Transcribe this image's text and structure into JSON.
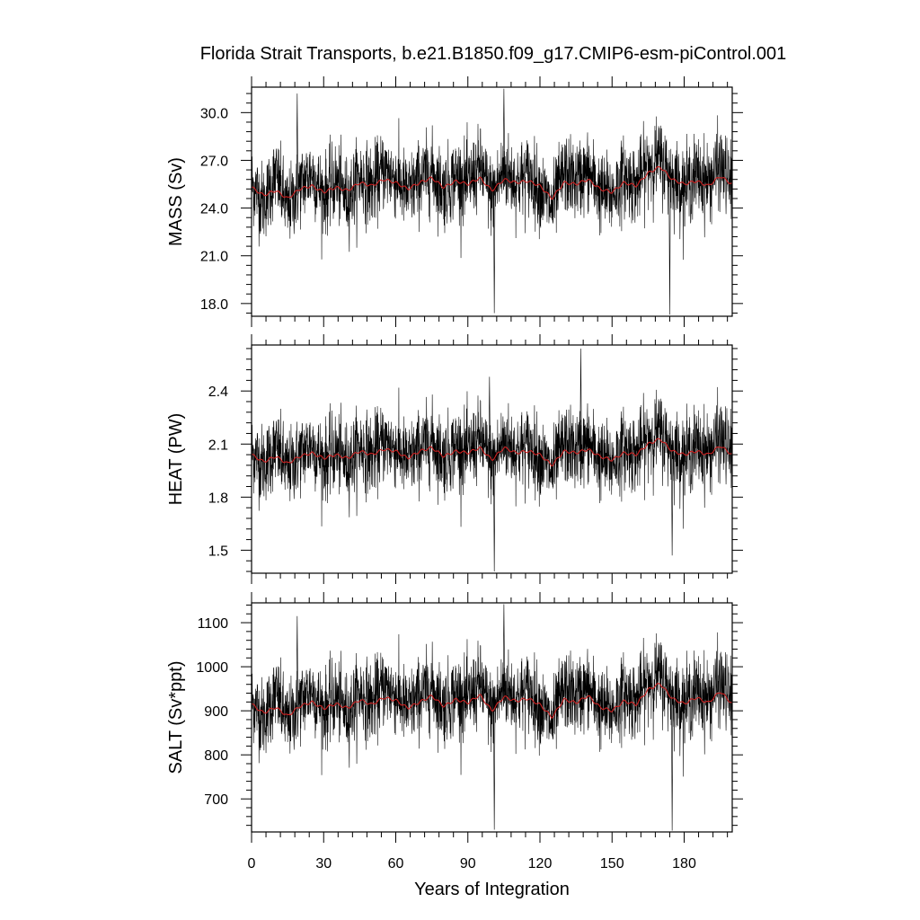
{
  "title": "Florida Strait Transports, b.e21.B1850.f09_g17.CMIP6-esm-piControl.001",
  "chart_data": [
    {
      "type": "line",
      "ylabel": "MASS (Sv)",
      "xlabel": "",
      "xlim": [
        0,
        200
      ],
      "ylim": [
        17.2,
        31.6
      ],
      "yticks": [
        18.0,
        21.0,
        24.0,
        27.0,
        30.0
      ],
      "ytick_labels": [
        "18.0",
        "21.0",
        "24.0",
        "27.0",
        "30.0"
      ],
      "x": [
        0,
        5,
        10,
        15,
        20,
        25,
        30,
        35,
        40,
        45,
        50,
        55,
        60,
        65,
        70,
        75,
        80,
        85,
        90,
        95,
        100,
        105,
        110,
        115,
        120,
        125,
        130,
        135,
        140,
        145,
        150,
        155,
        160,
        165,
        170,
        175,
        180,
        185,
        190,
        195,
        200
      ],
      "series": [
        {
          "role": "monthly",
          "color": "#000000",
          "values": [
            25.6,
            24.3,
            26.1,
            23.9,
            25.4,
            26.2,
            24.8,
            25.7,
            24.6,
            26.0,
            25.3,
            26.4,
            25.9,
            24.9,
            25.8,
            26.3,
            25.1,
            26.0,
            25.5,
            26.6,
            24.7,
            26.4,
            25.6,
            26.1,
            25.2,
            24.0,
            26.2,
            25.7,
            26.3,
            25.0,
            24.8,
            26.0,
            25.4,
            26.8,
            27.1,
            25.9,
            25.3,
            26.1,
            25.6,
            26.7,
            25.4
          ],
          "extremes": [
            {
              "x": 101,
              "y": 17.4
            },
            {
              "x": 174,
              "y": 17.3
            },
            {
              "x": 105,
              "y": 31.5
            },
            {
              "x": 19,
              "y": 31.2
            }
          ]
        },
        {
          "role": "smoothed",
          "color": "#cc2020",
          "values": [
            25.3,
            24.8,
            25.1,
            24.6,
            25.2,
            25.4,
            25.0,
            25.3,
            25.1,
            25.6,
            25.4,
            25.8,
            25.6,
            25.2,
            25.6,
            25.9,
            25.3,
            25.7,
            25.5,
            25.9,
            25.1,
            25.8,
            25.6,
            25.7,
            25.4,
            24.6,
            25.6,
            25.5,
            25.8,
            25.2,
            25.0,
            25.6,
            25.4,
            26.2,
            26.6,
            25.8,
            25.5,
            25.7,
            25.4,
            26.0,
            25.5
          ]
        }
      ]
    },
    {
      "type": "line",
      "ylabel": "HEAT (PW)",
      "xlabel": "",
      "xlim": [
        0,
        200
      ],
      "ylim": [
        1.37,
        2.66
      ],
      "yticks": [
        1.5,
        1.8,
        2.1,
        2.4
      ],
      "ytick_labels": [
        "1.5",
        "1.8",
        "2.1",
        "2.4"
      ],
      "x": [
        0,
        5,
        10,
        15,
        20,
        25,
        30,
        35,
        40,
        45,
        50,
        55,
        60,
        65,
        70,
        75,
        80,
        85,
        90,
        95,
        100,
        105,
        110,
        115,
        120,
        125,
        130,
        135,
        140,
        145,
        150,
        155,
        160,
        165,
        170,
        175,
        180,
        185,
        190,
        195,
        200
      ],
      "series": [
        {
          "role": "monthly",
          "color": "#000000",
          "values": [
            2.06,
            1.98,
            2.08,
            1.95,
            2.04,
            2.1,
            2.0,
            2.06,
            1.99,
            2.09,
            2.03,
            2.11,
            2.08,
            2.0,
            2.07,
            2.12,
            2.02,
            2.09,
            2.05,
            2.13,
            1.98,
            2.12,
            2.06,
            2.09,
            2.03,
            1.94,
            2.1,
            2.06,
            2.11,
            2.01,
            1.99,
            2.08,
            2.04,
            2.14,
            2.17,
            2.07,
            2.03,
            2.09,
            2.05,
            2.14,
            2.04
          ],
          "extremes": [
            {
              "x": 101,
              "y": 1.38
            },
            {
              "x": 175,
              "y": 1.47
            },
            {
              "x": 137,
              "y": 2.64
            },
            {
              "x": 99,
              "y": 2.48
            }
          ]
        },
        {
          "role": "smoothed",
          "color": "#cc2020",
          "values": [
            2.04,
            2.0,
            2.03,
            1.99,
            2.03,
            2.05,
            2.02,
            2.04,
            2.02,
            2.06,
            2.04,
            2.07,
            2.06,
            2.02,
            2.06,
            2.08,
            2.03,
            2.06,
            2.05,
            2.08,
            2.01,
            2.08,
            2.05,
            2.06,
            2.04,
            1.98,
            2.06,
            2.05,
            2.07,
            2.03,
            2.01,
            2.05,
            2.04,
            2.1,
            2.13,
            2.06,
            2.04,
            2.06,
            2.04,
            2.09,
            2.04
          ]
        }
      ]
    },
    {
      "type": "line",
      "ylabel": "SALT (Sv*ppt)",
      "xlabel": "Years of Integration",
      "xlim": [
        0,
        200
      ],
      "ylim": [
        625,
        1145
      ],
      "yticks": [
        700,
        800,
        900,
        1000,
        1100
      ],
      "ytick_labels": [
        "700",
        "800",
        "900",
        "1000",
        "1100"
      ],
      "xticks": [
        0,
        30,
        60,
        90,
        120,
        150,
        180
      ],
      "xtick_labels": [
        "0",
        "30",
        "60",
        "90",
        "120",
        "150",
        "180"
      ],
      "x": [
        0,
        5,
        10,
        15,
        20,
        25,
        30,
        35,
        40,
        45,
        50,
        55,
        60,
        65,
        70,
        75,
        80,
        85,
        90,
        95,
        100,
        105,
        110,
        115,
        120,
        125,
        130,
        135,
        140,
        145,
        150,
        155,
        160,
        165,
        170,
        175,
        180,
        185,
        190,
        195,
        200
      ],
      "series": [
        {
          "role": "monthly",
          "color": "#000000",
          "values": [
            925,
            880,
            940,
            870,
            918,
            948,
            900,
            930,
            892,
            942,
            915,
            955,
            938,
            902,
            933,
            952,
            910,
            940,
            922,
            962,
            895,
            955,
            928,
            945,
            912,
            870,
            948,
            930,
            952,
            905,
            898,
            940,
            920,
            968,
            980,
            936,
            915,
            944,
            925,
            965,
            920
          ],
          "extremes": [
            {
              "x": 101,
              "y": 630
            },
            {
              "x": 175,
              "y": 628
            },
            {
              "x": 105,
              "y": 1142
            },
            {
              "x": 19,
              "y": 1115
            }
          ]
        },
        {
          "role": "smoothed",
          "color": "#cc2020",
          "values": [
            915,
            895,
            908,
            888,
            910,
            920,
            905,
            916,
            906,
            925,
            914,
            930,
            924,
            906,
            920,
            934,
            910,
            926,
            918,
            936,
            900,
            932,
            922,
            928,
            914,
            885,
            926,
            918,
            934,
            908,
            900,
            922,
            914,
            948,
            962,
            928,
            916,
            930,
            918,
            944,
            916
          ]
        }
      ]
    }
  ]
}
